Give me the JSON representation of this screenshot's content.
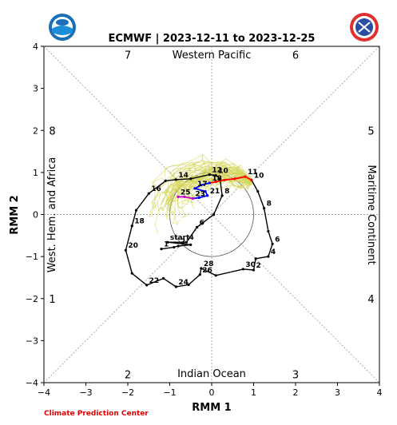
{
  "chart_data": {
    "type": "line",
    "title": "ECMWF | 2023-12-11 to 2023-12-25",
    "xlabel": "RMM 1",
    "ylabel": "RMM 2",
    "xlim": [
      -4,
      4
    ],
    "ylim": [
      -4,
      4
    ],
    "xticks": [
      "−4",
      "−3",
      "−2",
      "−1",
      "0",
      "1",
      "2",
      "3",
      "4"
    ],
    "yticks": [
      "−4",
      "−3",
      "−2",
      "−1",
      "0",
      "1",
      "2",
      "3",
      "4"
    ],
    "regions": {
      "top": "Western Pacific",
      "bottom": "Indian Ocean",
      "left": "West. Hem. and Africa",
      "right": "Maritime Continent"
    },
    "phases": [
      {
        "label": "7",
        "x": -2.0,
        "y": 3.8
      },
      {
        "label": "6",
        "x": 2.0,
        "y": 3.8
      },
      {
        "label": "8",
        "x": -3.8,
        "y": 2.0
      },
      {
        "label": "5",
        "x": 3.8,
        "y": 2.0
      },
      {
        "label": "1",
        "x": -3.8,
        "y": -2.0
      },
      {
        "label": "4",
        "x": 3.8,
        "y": -2.0
      },
      {
        "label": "2",
        "x": -2.0,
        "y": -3.8
      },
      {
        "label": "3",
        "x": 2.0,
        "y": -3.8
      }
    ],
    "colors": {
      "observed": "#000000",
      "ensemble": "#d4d455",
      "mean_week1": "#ff0000",
      "mean_week2": "#0000ff",
      "mean_week3": "#cc00cc",
      "guides": "#888888",
      "credit": "#e00000"
    },
    "series": [
      {
        "kind": "observed",
        "points": [
          {
            "x": -1.2,
            "y": -0.82,
            "label": "1"
          },
          {
            "x": -0.9,
            "y": -0.78,
            "label": ""
          },
          {
            "x": -0.8,
            "y": -0.75,
            "label": "2"
          },
          {
            "x": -0.5,
            "y": -0.72,
            "label": ""
          },
          {
            "x": -1.05,
            "y": -0.66,
            "label": "start"
          },
          {
            "x": -0.6,
            "y": -0.66,
            "label": "4"
          },
          {
            "x": -0.35,
            "y": -0.3,
            "label": "6"
          },
          {
            "x": 0.05,
            "y": 0.0,
            "label": ""
          },
          {
            "x": 0.25,
            "y": 0.45,
            "label": "8"
          },
          {
            "x": 0.2,
            "y": 0.85,
            "label": ""
          },
          {
            "x": 0.1,
            "y": 0.93,
            "label": "10"
          },
          {
            "x": -0.05,
            "y": 0.95,
            "label": "12"
          },
          {
            "x": -0.5,
            "y": 0.85,
            "label": ""
          },
          {
            "x": -0.85,
            "y": 0.83,
            "label": "14"
          },
          {
            "x": -1.1,
            "y": 0.8,
            "label": ""
          },
          {
            "x": -1.5,
            "y": 0.5,
            "label": "16"
          },
          {
            "x": -1.8,
            "y": 0.1,
            "label": ""
          },
          {
            "x": -1.9,
            "y": -0.27,
            "label": "18"
          },
          {
            "x": -2.05,
            "y": -0.85,
            "label": "20"
          },
          {
            "x": -1.9,
            "y": -1.4,
            "label": ""
          },
          {
            "x": -1.55,
            "y": -1.68,
            "label": "22"
          },
          {
            "x": -1.15,
            "y": -1.52,
            "label": ""
          },
          {
            "x": -0.85,
            "y": -1.72,
            "label": "24"
          },
          {
            "x": -0.55,
            "y": -1.67,
            "label": ""
          },
          {
            "x": -0.28,
            "y": -1.43,
            "label": "26"
          },
          {
            "x": -0.25,
            "y": -1.28,
            "label": "28"
          },
          {
            "x": 0.1,
            "y": -1.45,
            "label": ""
          },
          {
            "x": 0.75,
            "y": -1.3,
            "label": "30"
          },
          {
            "x": 1.0,
            "y": -1.32,
            "label": "2"
          },
          {
            "x": 1.05,
            "y": -1.05,
            "label": ""
          },
          {
            "x": 1.35,
            "y": -1.0,
            "label": "4"
          },
          {
            "x": 1.45,
            "y": -0.7,
            "label": "6"
          },
          {
            "x": 1.35,
            "y": -0.4,
            "label": ""
          },
          {
            "x": 1.25,
            "y": 0.15,
            "label": "8"
          },
          {
            "x": 1.1,
            "y": 0.55,
            "label": ""
          },
          {
            "x": 0.95,
            "y": 0.82,
            "label": "10"
          }
        ]
      },
      {
        "kind": "mean_week1",
        "points": [
          {
            "x": 0.95,
            "y": 0.82,
            "label": ""
          },
          {
            "x": 0.8,
            "y": 0.9,
            "label": "11"
          },
          {
            "x": 0.55,
            "y": 0.85,
            "label": ""
          },
          {
            "x": 0.3,
            "y": 0.82,
            "label": ""
          },
          {
            "x": 0.1,
            "y": 0.78,
            "label": ""
          },
          {
            "x": -0.05,
            "y": 0.75,
            "label": "18"
          }
        ]
      },
      {
        "kind": "mean_week2",
        "points": [
          {
            "x": -0.05,
            "y": 0.75,
            "label": ""
          },
          {
            "x": -0.25,
            "y": 0.7,
            "label": ""
          },
          {
            "x": -0.4,
            "y": 0.62,
            "label": "17"
          },
          {
            "x": -0.15,
            "y": 0.55,
            "label": ""
          },
          {
            "x": -0.1,
            "y": 0.45,
            "label": "21"
          },
          {
            "x": -0.3,
            "y": 0.4,
            "label": ""
          },
          {
            "x": -0.45,
            "y": 0.38,
            "label": "23"
          }
        ]
      },
      {
        "kind": "mean_week3",
        "points": [
          {
            "x": -0.45,
            "y": 0.38,
            "label": ""
          },
          {
            "x": -0.65,
            "y": 0.42,
            "label": ""
          },
          {
            "x": -0.8,
            "y": 0.42,
            "label": "25"
          }
        ]
      }
    ],
    "unit_circle_radius": 1,
    "credit": "Climate Prediction Center"
  }
}
